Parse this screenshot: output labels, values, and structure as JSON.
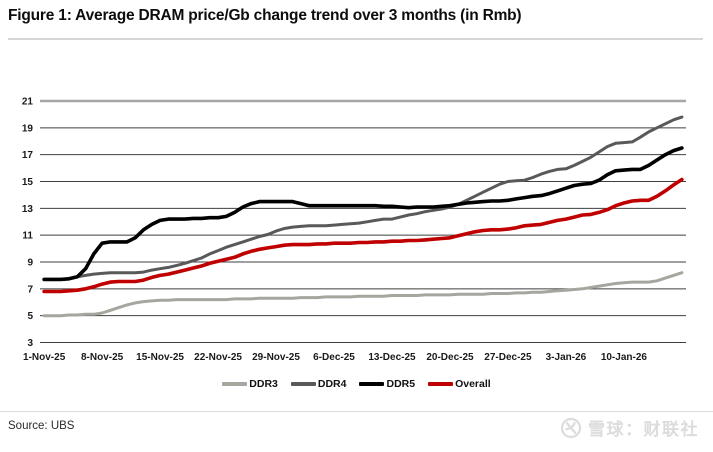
{
  "header": {
    "title": "Figure 1: Average DRAM price/Gb change trend over 3 months (in Rmb)"
  },
  "footer": {
    "source_label": "Source: UBS",
    "watermark_text": "雪球：财联社",
    "watermark_icon": "xueqiu-logo-icon"
  },
  "colors": {
    "grid_line": "#3f3f3f",
    "plot_top_border": "#a6a6a6",
    "axis_text": "#1a1a1a",
    "divider": "#d9d9d9"
  },
  "chart_data": {
    "type": "line",
    "title": "Figure 1: Average DRAM price/Gb change trend over 3 months (in Rmb)",
    "xlabel": "",
    "ylabel": "",
    "x_unit": "daily data; day 0 = 1-Nov-25, extends ~1 week past 10-Jan-26",
    "ylim": [
      3,
      21
    ],
    "y_ticks": [
      3,
      5,
      7,
      9,
      11,
      13,
      15,
      17,
      19,
      21
    ],
    "x_tick_labels": [
      "1-Nov-25",
      "8-Nov-25",
      "15-Nov-25",
      "22-Nov-25",
      "29-Nov-25",
      "6-Dec-25",
      "13-Dec-25",
      "20-Dec-25",
      "27-Dec-25",
      "3-Jan-26",
      "10-Jan-26"
    ],
    "x_tick_day_index": [
      0,
      7,
      14,
      21,
      28,
      35,
      42,
      49,
      56,
      63,
      70
    ],
    "grid": "horizontal",
    "legend_position": "bottom-center",
    "series": [
      {
        "name": "DDR3",
        "color": "#a6a69e",
        "width": 3,
        "values": [
          5.0,
          5.0,
          5.0,
          5.05,
          5.05,
          5.1,
          5.1,
          5.2,
          5.4,
          5.6,
          5.8,
          5.95,
          6.05,
          6.1,
          6.15,
          6.15,
          6.2,
          6.2,
          6.2,
          6.2,
          6.2,
          6.2,
          6.2,
          6.25,
          6.25,
          6.25,
          6.3,
          6.3,
          6.3,
          6.3,
          6.3,
          6.35,
          6.35,
          6.35,
          6.4,
          6.4,
          6.4,
          6.4,
          6.45,
          6.45,
          6.45,
          6.45,
          6.5,
          6.5,
          6.5,
          6.5,
          6.55,
          6.55,
          6.55,
          6.55,
          6.6,
          6.6,
          6.6,
          6.6,
          6.65,
          6.65,
          6.65,
          6.7,
          6.7,
          6.75,
          6.75,
          6.8,
          6.85,
          6.9,
          6.95,
          7.0,
          7.1,
          7.2,
          7.3,
          7.4,
          7.45,
          7.5,
          7.5,
          7.5,
          7.6,
          7.8,
          8.0,
          8.2
        ]
      },
      {
        "name": "DDR4",
        "color": "#595959",
        "width": 3,
        "values": [
          7.7,
          7.7,
          7.7,
          7.75,
          7.9,
          8.0,
          8.1,
          8.15,
          8.2,
          8.2,
          8.2,
          8.2,
          8.25,
          8.4,
          8.5,
          8.6,
          8.75,
          8.9,
          9.1,
          9.3,
          9.6,
          9.85,
          10.1,
          10.3,
          10.5,
          10.7,
          10.9,
          11.05,
          11.3,
          11.5,
          11.6,
          11.65,
          11.7,
          11.7,
          11.7,
          11.75,
          11.8,
          11.85,
          11.9,
          12.0,
          12.1,
          12.2,
          12.2,
          12.35,
          12.5,
          12.6,
          12.75,
          12.85,
          12.95,
          13.1,
          13.3,
          13.6,
          13.9,
          14.2,
          14.5,
          14.8,
          15.0,
          15.05,
          15.1,
          15.3,
          15.55,
          15.75,
          15.9,
          15.95,
          16.2,
          16.5,
          16.8,
          17.2,
          17.6,
          17.85,
          17.9,
          17.95,
          18.3,
          18.7,
          19.0,
          19.3,
          19.6,
          19.8
        ]
      },
      {
        "name": "DDR5",
        "color": "#000000",
        "width": 3.6,
        "values": [
          7.7,
          7.7,
          7.7,
          7.75,
          7.9,
          8.5,
          9.6,
          10.4,
          10.5,
          10.5,
          10.5,
          10.8,
          11.4,
          11.8,
          12.1,
          12.2,
          12.2,
          12.2,
          12.25,
          12.25,
          12.3,
          12.3,
          12.4,
          12.7,
          13.1,
          13.35,
          13.5,
          13.5,
          13.5,
          13.5,
          13.5,
          13.35,
          13.2,
          13.2,
          13.2,
          13.2,
          13.2,
          13.2,
          13.2,
          13.2,
          13.2,
          13.15,
          13.15,
          13.1,
          13.05,
          13.1,
          13.1,
          13.1,
          13.15,
          13.2,
          13.3,
          13.4,
          13.45,
          13.5,
          13.55,
          13.55,
          13.6,
          13.7,
          13.8,
          13.9,
          13.95,
          14.1,
          14.3,
          14.5,
          14.7,
          14.8,
          14.85,
          15.1,
          15.5,
          15.8,
          15.85,
          15.9,
          15.9,
          16.2,
          16.6,
          17.0,
          17.3,
          17.5
        ]
      },
      {
        "name": "Overall",
        "color": "#c00000",
        "width": 3.6,
        "values": [
          6.8,
          6.8,
          6.8,
          6.85,
          6.9,
          7.0,
          7.15,
          7.35,
          7.5,
          7.55,
          7.55,
          7.55,
          7.65,
          7.85,
          8.0,
          8.1,
          8.25,
          8.4,
          8.55,
          8.7,
          8.9,
          9.05,
          9.2,
          9.35,
          9.6,
          9.8,
          9.95,
          10.05,
          10.15,
          10.25,
          10.3,
          10.3,
          10.3,
          10.35,
          10.35,
          10.4,
          10.4,
          10.4,
          10.45,
          10.45,
          10.5,
          10.5,
          10.55,
          10.55,
          10.6,
          10.6,
          10.65,
          10.7,
          10.75,
          10.8,
          10.95,
          11.1,
          11.25,
          11.35,
          11.4,
          11.4,
          11.45,
          11.55,
          11.7,
          11.75,
          11.8,
          11.95,
          12.1,
          12.2,
          12.35,
          12.5,
          12.55,
          12.7,
          12.9,
          13.2,
          13.4,
          13.55,
          13.6,
          13.6,
          13.9,
          14.3,
          14.75,
          15.15
        ]
      }
    ]
  }
}
